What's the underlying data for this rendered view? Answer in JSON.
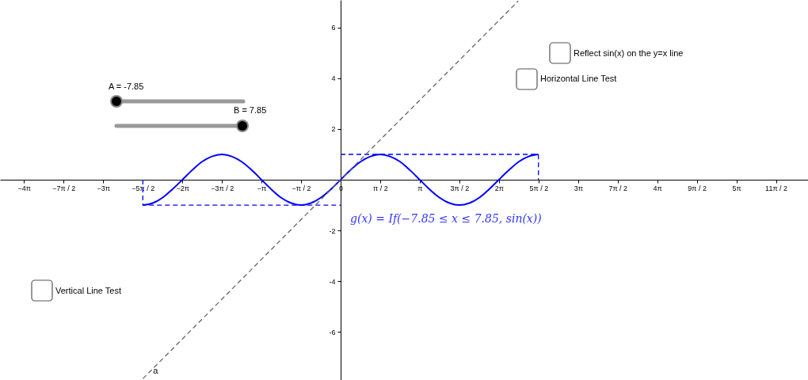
{
  "chart_data": {
    "type": "line",
    "xlim": [
      -13.52,
      18.55
    ],
    "ylim": [
      -7.9,
      7.09
    ],
    "xticks": [
      {
        "value": -12.566,
        "label": "−4π"
      },
      {
        "value": -10.996,
        "label": "−7π / 2"
      },
      {
        "value": -9.425,
        "label": "−3π"
      },
      {
        "value": -7.854,
        "label": "−5π / 2"
      },
      {
        "value": -6.283,
        "label": "−2π"
      },
      {
        "value": -4.712,
        "label": "−3π / 2"
      },
      {
        "value": -3.142,
        "label": "−π"
      },
      {
        "value": -1.571,
        "label": "−π / 2"
      },
      0,
      {
        "value": 1.571,
        "label": "π / 2"
      },
      {
        "value": 3.142,
        "label": "π"
      },
      {
        "value": 4.712,
        "label": "3π / 2"
      },
      {
        "value": 6.283,
        "label": "2π"
      },
      {
        "value": 7.854,
        "label": "5π / 2"
      },
      {
        "value": 9.425,
        "label": "3π"
      },
      {
        "value": 10.996,
        "label": "7π / 2"
      },
      {
        "value": 12.566,
        "label": "4π"
      },
      {
        "value": 14.137,
        "label": "9π / 2"
      },
      {
        "value": 15.708,
        "label": "5π"
      },
      {
        "value": 17.279,
        "label": "11π / 2"
      }
    ],
    "yticks": [
      -6,
      -4,
      -2,
      2,
      4,
      6
    ],
    "series": [
      {
        "color": "#0000ff",
        "line_style": "solid",
        "x": [
          -7.85,
          -7.46,
          -7.07,
          -6.68,
          -6.28,
          -5.89,
          -5.5,
          -5.11,
          -4.71,
          -4.32,
          -3.93,
          -3.53,
          -3.14,
          -2.75,
          -2.36,
          -1.96,
          -1.57,
          -1.18,
          -0.79,
          -0.39,
          0,
          0.39,
          0.79,
          1.18,
          1.57,
          1.96,
          2.36,
          2.75,
          3.14,
          3.53,
          3.93,
          4.32,
          4.71,
          5.11,
          5.5,
          5.89,
          6.28,
          6.68,
          7.07,
          7.46,
          7.85
        ],
        "values": [
          -1,
          -0.92,
          -0.71,
          -0.38,
          0,
          0.38,
          0.71,
          0.92,
          1,
          0.92,
          0.71,
          0.38,
          0,
          -0.38,
          -0.71,
          -0.92,
          -1,
          -0.92,
          -0.71,
          -0.38,
          0,
          0.38,
          0.71,
          0.92,
          1,
          0.92,
          0.71,
          0.38,
          0,
          -0.38,
          -0.71,
          -0.92,
          -1,
          -0.92,
          -0.71,
          -0.38,
          0,
          0.38,
          0.71,
          0.92,
          1
        ]
      },
      {
        "color": "#0000ff",
        "line_style": "dashed",
        "x": [
          0,
          7.85,
          7.85
        ],
        "values": [
          1,
          1,
          0
        ]
      },
      {
        "color": "#0000ff",
        "line_style": "dashed",
        "x": [
          -7.85,
          -7.85,
          0
        ],
        "values": [
          0,
          -1,
          -1
        ]
      },
      {
        "color": "#666666",
        "line_style": "dashed",
        "x": [
          -7.85,
          7.05
        ],
        "values": [
          -7.85,
          7.05
        ]
      }
    ],
    "annotations": [
      "A = -7.85",
      "B = 7.85",
      "Reflect sin(x) on the y=x line",
      "Horizontal Line Test",
      "Vertical Line Test",
      "g(x) = If(−7.85 ≤ x ≤ 7.85, sin(x))",
      {
        "text": "a",
        "x": -7.35,
        "y": -7.55
      }
    ]
  }
}
